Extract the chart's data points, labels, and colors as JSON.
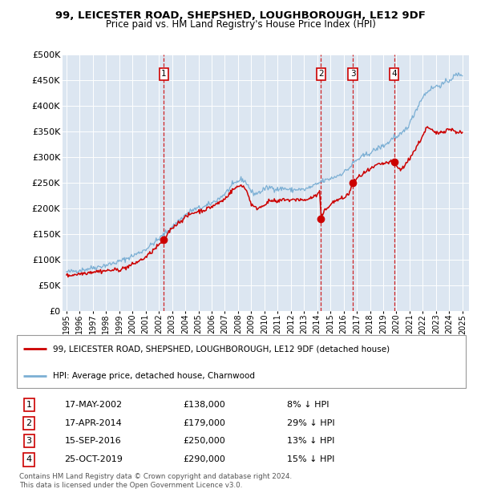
{
  "title": "99, LEICESTER ROAD, SHEPSHED, LOUGHBOROUGH, LE12 9DF",
  "subtitle": "Price paid vs. HM Land Registry's House Price Index (HPI)",
  "plot_bg_color": "#dce6f1",
  "hpi_color": "#7bafd4",
  "price_color": "#cc0000",
  "marker_color": "#cc0000",
  "vline_color": "#cc0000",
  "grid_color": "#ffffff",
  "ylim": [
    0,
    500000
  ],
  "yticks": [
    0,
    50000,
    100000,
    150000,
    200000,
    250000,
    300000,
    350000,
    400000,
    450000,
    500000
  ],
  "ytick_labels": [
    "£0",
    "£50K",
    "£100K",
    "£150K",
    "£200K",
    "£250K",
    "£300K",
    "£350K",
    "£400K",
    "£450K",
    "£500K"
  ],
  "xlim_start": 1994.7,
  "xlim_end": 2025.5,
  "xtick_years": [
    1995,
    1996,
    1997,
    1998,
    1999,
    2000,
    2001,
    2002,
    2003,
    2004,
    2005,
    2006,
    2007,
    2008,
    2009,
    2010,
    2011,
    2012,
    2013,
    2014,
    2015,
    2016,
    2017,
    2018,
    2019,
    2020,
    2021,
    2022,
    2023,
    2024,
    2025
  ],
  "purchases": [
    {
      "num": 1,
      "date": "17-MAY-2002",
      "year": 2002.38,
      "price": 138000
    },
    {
      "num": 2,
      "date": "17-APR-2014",
      "year": 2014.29,
      "price": 179000
    },
    {
      "num": 3,
      "date": "15-SEP-2016",
      "year": 2016.71,
      "price": 250000
    },
    {
      "num": 4,
      "date": "25-OCT-2019",
      "year": 2019.82,
      "price": 290000
    }
  ],
  "legend_label_red": "99, LEICESTER ROAD, SHEPSHED, LOUGHBOROUGH, LE12 9DF (detached house)",
  "legend_label_blue": "HPI: Average price, detached house, Charnwood",
  "footer_line1": "Contains HM Land Registry data © Crown copyright and database right 2024.",
  "footer_line2": "This data is licensed under the Open Government Licence v3.0.",
  "table_rows": [
    [
      "1",
      "17-MAY-2002",
      "£138,000",
      "8% ↓ HPI"
    ],
    [
      "2",
      "17-APR-2014",
      "£179,000",
      "29% ↓ HPI"
    ],
    [
      "3",
      "15-SEP-2016",
      "£250,000",
      "13% ↓ HPI"
    ],
    [
      "4",
      "25-OCT-2019",
      "£290,000",
      "15% ↓ HPI"
    ]
  ],
  "hpi_points": [
    [
      1995.0,
      75000
    ],
    [
      1995.5,
      77000
    ],
    [
      1996.0,
      79000
    ],
    [
      1996.5,
      81000
    ],
    [
      1997.0,
      84000
    ],
    [
      1997.5,
      86000
    ],
    [
      1998.0,
      89000
    ],
    [
      1998.5,
      92000
    ],
    [
      1999.0,
      96000
    ],
    [
      1999.5,
      101000
    ],
    [
      2000.0,
      107000
    ],
    [
      2000.5,
      113000
    ],
    [
      2001.0,
      120000
    ],
    [
      2001.5,
      130000
    ],
    [
      2002.0,
      140000
    ],
    [
      2002.5,
      152000
    ],
    [
      2003.0,
      163000
    ],
    [
      2003.5,
      175000
    ],
    [
      2004.0,
      187000
    ],
    [
      2004.5,
      196000
    ],
    [
      2005.0,
      200000
    ],
    [
      2005.5,
      203000
    ],
    [
      2006.0,
      210000
    ],
    [
      2006.5,
      218000
    ],
    [
      2007.0,
      228000
    ],
    [
      2007.5,
      243000
    ],
    [
      2008.0,
      253000
    ],
    [
      2008.3,
      257000
    ],
    [
      2008.7,
      248000
    ],
    [
      2009.0,
      232000
    ],
    [
      2009.3,
      228000
    ],
    [
      2009.7,
      232000
    ],
    [
      2010.0,
      238000
    ],
    [
      2010.5,
      241000
    ],
    [
      2011.0,
      237000
    ],
    [
      2011.5,
      239000
    ],
    [
      2012.0,
      235000
    ],
    [
      2012.5,
      237000
    ],
    [
      2013.0,
      236000
    ],
    [
      2013.5,
      241000
    ],
    [
      2014.0,
      247000
    ],
    [
      2014.3,
      252000
    ],
    [
      2014.7,
      255000
    ],
    [
      2015.0,
      258000
    ],
    [
      2015.5,
      263000
    ],
    [
      2016.0,
      270000
    ],
    [
      2016.5,
      280000
    ],
    [
      2016.71,
      288000
    ],
    [
      2017.0,
      294000
    ],
    [
      2017.5,
      302000
    ],
    [
      2018.0,
      308000
    ],
    [
      2018.5,
      316000
    ],
    [
      2019.0,
      322000
    ],
    [
      2019.5,
      330000
    ],
    [
      2019.82,
      342000
    ],
    [
      2020.0,
      336000
    ],
    [
      2020.5,
      348000
    ],
    [
      2021.0,
      365000
    ],
    [
      2021.5,
      393000
    ],
    [
      2022.0,
      418000
    ],
    [
      2022.5,
      432000
    ],
    [
      2023.0,
      438000
    ],
    [
      2023.5,
      442000
    ],
    [
      2024.0,
      450000
    ],
    [
      2024.5,
      460000
    ],
    [
      2025.0,
      462000
    ]
  ],
  "price_points": [
    [
      1995.0,
      68000
    ],
    [
      1995.5,
      70000
    ],
    [
      1996.0,
      72000
    ],
    [
      1996.5,
      74000
    ],
    [
      1997.0,
      76000
    ],
    [
      1997.5,
      77000
    ],
    [
      1998.0,
      78000
    ],
    [
      1998.5,
      79000
    ],
    [
      1999.0,
      80000
    ],
    [
      1999.5,
      84000
    ],
    [
      2000.0,
      90000
    ],
    [
      2000.5,
      97000
    ],
    [
      2001.0,
      104000
    ],
    [
      2001.5,
      116000
    ],
    [
      2002.0,
      128000
    ],
    [
      2002.38,
      138000
    ],
    [
      2002.7,
      152000
    ],
    [
      2003.0,
      162000
    ],
    [
      2003.5,
      172000
    ],
    [
      2004.0,
      182000
    ],
    [
      2004.5,
      190000
    ],
    [
      2005.0,
      194000
    ],
    [
      2005.5,
      197000
    ],
    [
      2006.0,
      203000
    ],
    [
      2006.5,
      210000
    ],
    [
      2007.0,
      218000
    ],
    [
      2007.3,
      228000
    ],
    [
      2007.7,
      238000
    ],
    [
      2008.0,
      242000
    ],
    [
      2008.3,
      246000
    ],
    [
      2008.7,
      232000
    ],
    [
      2009.0,
      208000
    ],
    [
      2009.3,
      200000
    ],
    [
      2009.7,
      202000
    ],
    [
      2010.0,
      208000
    ],
    [
      2010.5,
      215000
    ],
    [
      2011.0,
      212000
    ],
    [
      2011.5,
      218000
    ],
    [
      2012.0,
      215000
    ],
    [
      2012.5,
      218000
    ],
    [
      2013.0,
      215000
    ],
    [
      2013.3,
      218000
    ],
    [
      2013.7,
      222000
    ],
    [
      2014.0,
      226000
    ],
    [
      2014.2,
      233000
    ],
    [
      2014.29,
      179000
    ],
    [
      2014.5,
      193000
    ],
    [
      2014.8,
      202000
    ],
    [
      2015.0,
      208000
    ],
    [
      2015.5,
      216000
    ],
    [
      2016.0,
      220000
    ],
    [
      2016.4,
      228000
    ],
    [
      2016.71,
      250000
    ],
    [
      2017.0,
      258000
    ],
    [
      2017.5,
      268000
    ],
    [
      2018.0,
      275000
    ],
    [
      2018.5,
      284000
    ],
    [
      2019.0,
      287000
    ],
    [
      2019.5,
      290000
    ],
    [
      2019.82,
      290000
    ],
    [
      2020.0,
      282000
    ],
    [
      2020.3,
      275000
    ],
    [
      2020.7,
      285000
    ],
    [
      2021.0,
      298000
    ],
    [
      2021.5,
      318000
    ],
    [
      2022.0,
      342000
    ],
    [
      2022.3,
      358000
    ],
    [
      2022.7,
      352000
    ],
    [
      2023.0,
      346000
    ],
    [
      2023.5,
      350000
    ],
    [
      2024.0,
      355000
    ],
    [
      2024.5,
      350000
    ],
    [
      2025.0,
      347000
    ]
  ]
}
